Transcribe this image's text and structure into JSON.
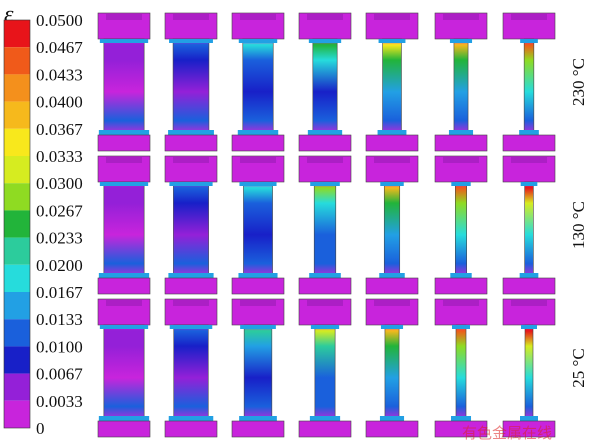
{
  "legend": {
    "symbol": "ε",
    "subscript": "e",
    "labels": [
      "0.0500",
      "0.0467",
      "0.0433",
      "0.0400",
      "0.0367",
      "0.0333",
      "0.0300",
      "0.0267",
      "0.0233",
      "0.0200",
      "0.0167",
      "0.0133",
      "0.0100",
      "0.0067",
      "0.0033",
      "0"
    ],
    "colors": [
      "#e8141a",
      "#f05a1a",
      "#f4901c",
      "#f6b91c",
      "#f8e81c",
      "#d6ec20",
      "#8fdb22",
      "#22b43a",
      "#2ccc9c",
      "#26dcdc",
      "#22a0e4",
      "#1a60dc",
      "#1820c8",
      "#9420d8",
      "#c824dc"
    ]
  },
  "rows": [
    {
      "temperature": "230 °C",
      "stages": [
        0.05,
        0.18,
        0.34,
        0.52,
        0.68,
        0.82,
        0.95
      ]
    },
    {
      "temperature": "130 °C",
      "stages": [
        0.05,
        0.2,
        0.38,
        0.6,
        0.78,
        0.9,
        0.98
      ]
    },
    {
      "temperature": "25 °C",
      "stages": [
        0.05,
        0.22,
        0.42,
        0.64,
        0.82,
        0.94,
        1.0
      ]
    }
  ],
  "watermark": "有色金属在线",
  "colors": {
    "background": "#c824dc",
    "outline": "#444444"
  }
}
